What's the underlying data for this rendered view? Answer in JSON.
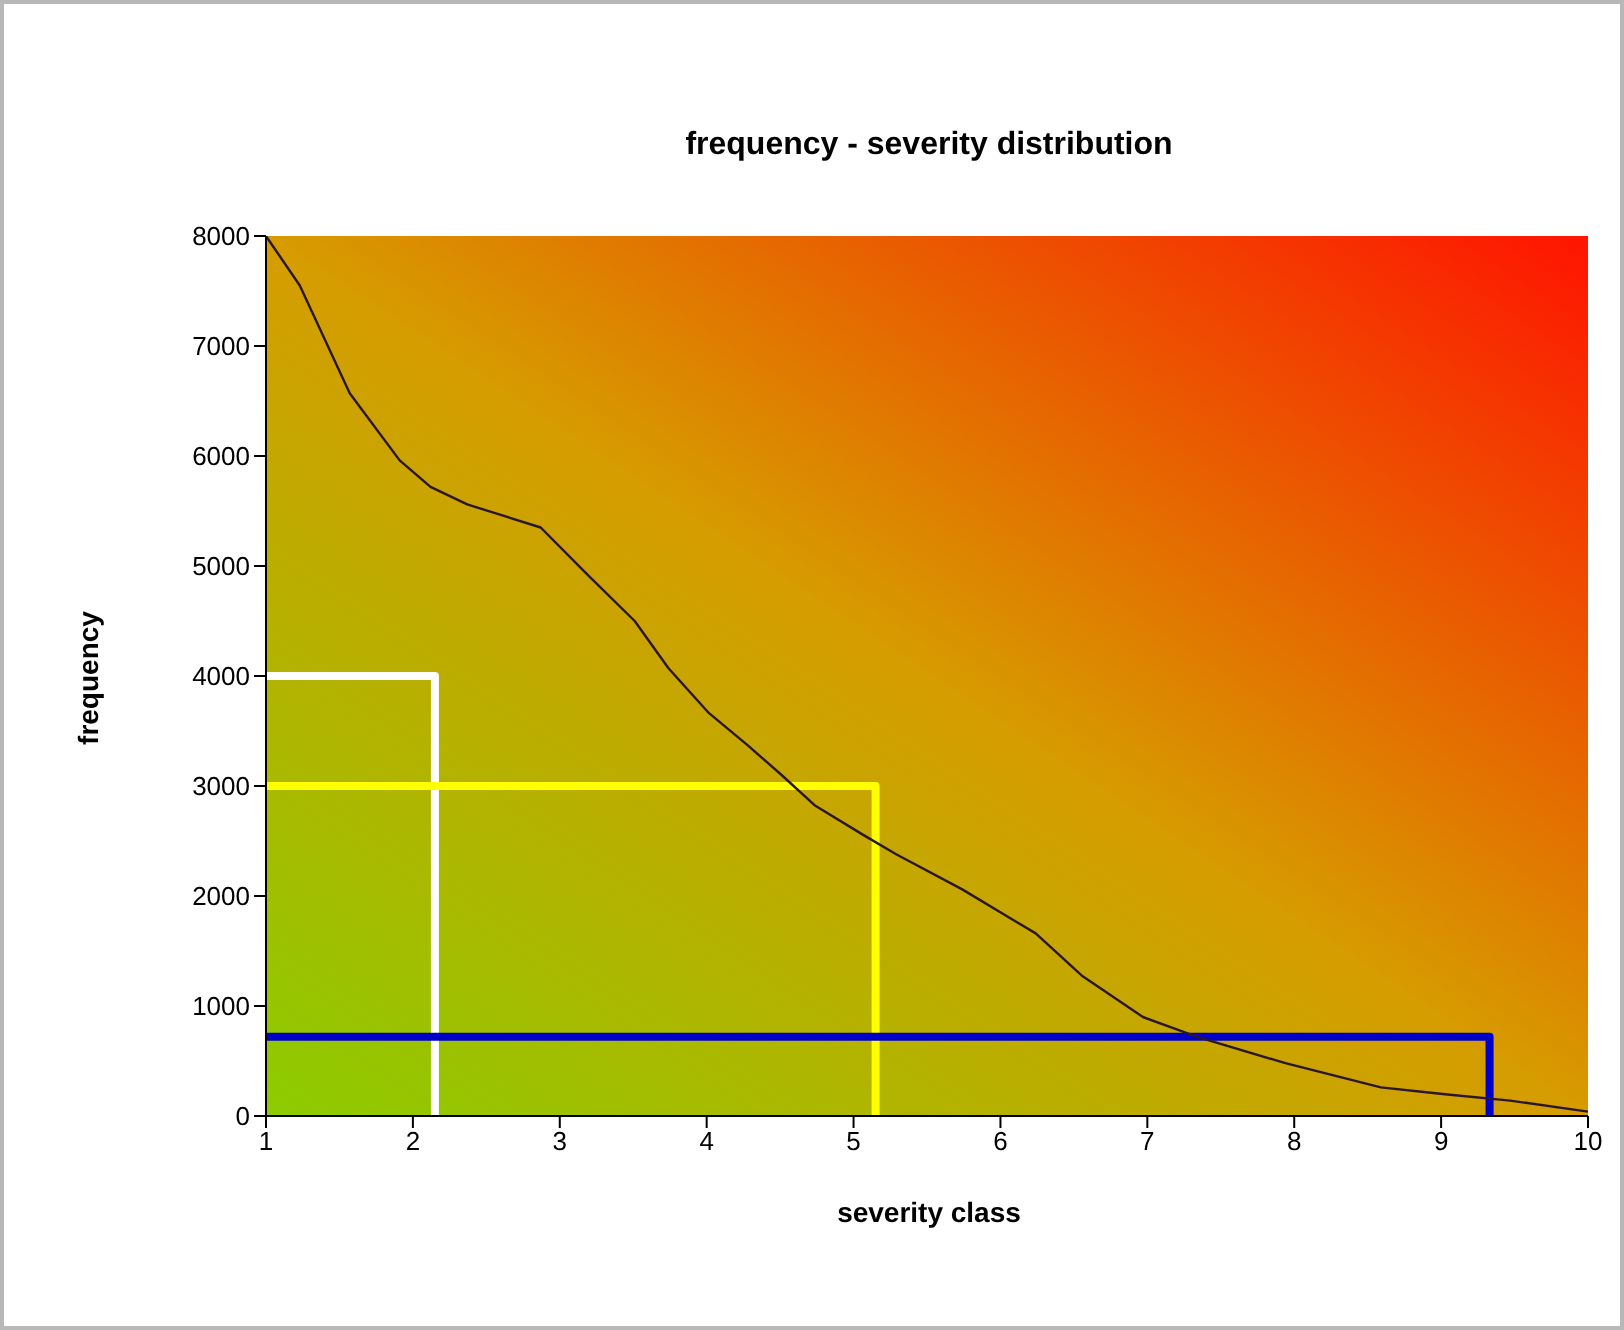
{
  "chart_data": {
    "type": "line",
    "title": "frequency - severity distribution",
    "xlabel": "severity class",
    "ylabel": "frequency",
    "xlim": [
      1,
      10
    ],
    "xticks": [
      1,
      2,
      3,
      4,
      5,
      6,
      7,
      8,
      9,
      10
    ],
    "ylim": [
      0,
      8000
    ],
    "yticks": [
      0,
      1000,
      2000,
      3000,
      4000,
      5000,
      6000,
      7000,
      8000
    ],
    "marker": "none",
    "series": [
      {
        "color": "#2a1630",
        "x": [
          1,
          1.23,
          1.57,
          1.91,
          2.12,
          2.37,
          2.87,
          3.19,
          3.51,
          3.74,
          4.01,
          4.28,
          4.51,
          4.74,
          5.06,
          5.29,
          5.74,
          6.24,
          6.56,
          6.97,
          7.34,
          7.94,
          8.59,
          9.01,
          9.47,
          10
        ],
        "values": [
          8000,
          7550,
          6570,
          5960,
          5720,
          5560,
          5350,
          4920,
          4500,
          4070,
          3670,
          3370,
          3100,
          2820,
          2560,
          2380,
          2060,
          1660,
          1270,
          900,
          720,
          480,
          260,
          200,
          140,
          40
        ]
      },
      {
        "color": "#ffffff",
        "x": [
          1,
          2.15,
          2.15
        ],
        "values": [
          4000,
          4000,
          0
        ]
      },
      {
        "color": "#ffff00",
        "x": [
          1,
          5.15,
          5.15
        ],
        "values": [
          3000,
          3000,
          0
        ]
      },
      {
        "color": "#0000c8",
        "x": [
          1,
          9.33,
          9.33
        ],
        "values": [
          720,
          720,
          0
        ]
      }
    ]
  }
}
